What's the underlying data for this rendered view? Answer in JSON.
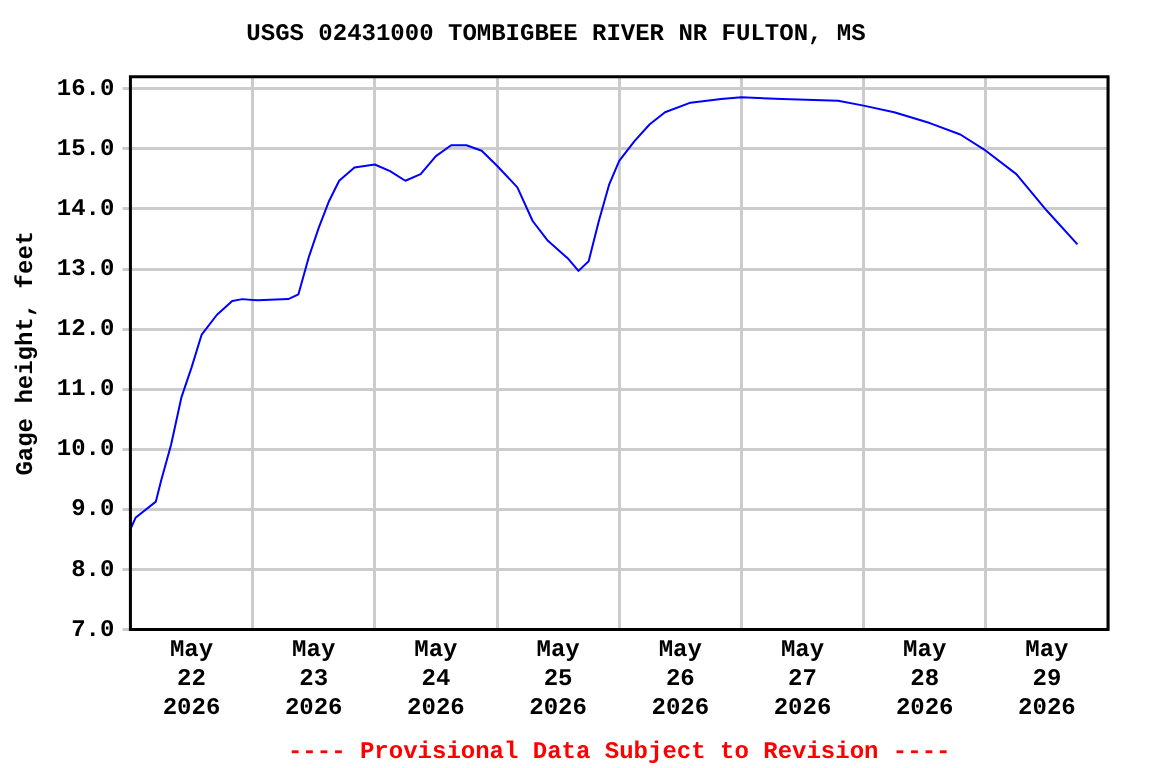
{
  "chart_data": {
    "type": "line",
    "title": "USGS 02431000 TOMBIGBEE RIVER NR FULTON, MS",
    "ylabel": "Gage height, feet",
    "annotations": [
      "---- Provisional Data Subject to Revision ----"
    ],
    "x": [
      "2026-05-22T00:00",
      "2026-05-22T01:00",
      "2026-05-22T05:00",
      "2026-05-22T06:00",
      "2026-05-22T08:00",
      "2026-05-22T10:00",
      "2026-05-22T12:00",
      "2026-05-22T14:00",
      "2026-05-22T17:00",
      "2026-05-22T20:00",
      "2026-05-22T22:00",
      "2026-05-23T01:00",
      "2026-05-23T07:00",
      "2026-05-23T09:00",
      "2026-05-23T11:00",
      "2026-05-23T13:00",
      "2026-05-23T15:00",
      "2026-05-23T17:00",
      "2026-05-23T20:00",
      "2026-05-24T00:00",
      "2026-05-24T03:00",
      "2026-05-24T06:00",
      "2026-05-24T09:00",
      "2026-05-24T12:00",
      "2026-05-24T15:00",
      "2026-05-24T18:00",
      "2026-05-24T21:00",
      "2026-05-25T00:00",
      "2026-05-25T04:00",
      "2026-05-25T07:00",
      "2026-05-25T10:00",
      "2026-05-25T14:00",
      "2026-05-25T16:00",
      "2026-05-25T18:00",
      "2026-05-25T20:00",
      "2026-05-25T22:00",
      "2026-05-26T00:00",
      "2026-05-26T03:00",
      "2026-05-26T06:00",
      "2026-05-26T09:00",
      "2026-05-26T14:00",
      "2026-05-26T20:00",
      "2026-05-27T00:00",
      "2026-05-27T08:00",
      "2026-05-27T19:00",
      "2026-05-28T00:00",
      "2026-05-28T06:00",
      "2026-05-28T13:00",
      "2026-05-28T19:00",
      "2026-05-29T00:00",
      "2026-05-29T06:00",
      "2026-05-29T12:00",
      "2026-05-29T18:00"
    ],
    "series": [
      {
        "color": "#0000ff",
        "values": [
          8.67,
          8.86,
          9.13,
          9.47,
          10.08,
          10.86,
          11.36,
          11.91,
          12.24,
          12.47,
          12.5,
          12.48,
          12.5,
          12.58,
          13.19,
          13.69,
          14.13,
          14.47,
          14.69,
          14.74,
          14.63,
          14.47,
          14.58,
          14.88,
          15.06,
          15.06,
          14.97,
          14.72,
          14.36,
          13.8,
          13.47,
          13.17,
          12.97,
          13.13,
          13.8,
          14.4,
          14.8,
          15.13,
          15.41,
          15.61,
          15.77,
          15.83,
          15.86,
          15.83,
          15.8,
          15.72,
          15.61,
          15.43,
          15.24,
          14.97,
          14.58,
          13.97,
          13.41
        ]
      }
    ],
    "xlim": [
      "2026-05-22T00:00",
      "2026-05-30T00:00"
    ],
    "xticks": [
      {
        "value": "2026-05-22T00:00",
        "label": null
      },
      {
        "value": "2026-05-22T12:00",
        "label": "May 22 2026"
      },
      {
        "value": "2026-05-23T00:00",
        "label": null
      },
      {
        "value": "2026-05-23T12:00",
        "label": "May 23 2026"
      },
      {
        "value": "2026-05-24T00:00",
        "label": null
      },
      {
        "value": "2026-05-24T12:00",
        "label": "May 24 2026"
      },
      {
        "value": "2026-05-25T00:00",
        "label": null
      },
      {
        "value": "2026-05-25T12:00",
        "label": "May 25 2026"
      },
      {
        "value": "2026-05-26T00:00",
        "label": null
      },
      {
        "value": "2026-05-26T12:00",
        "label": "May 26 2026"
      },
      {
        "value": "2026-05-27T00:00",
        "label": null
      },
      {
        "value": "2026-05-27T12:00",
        "label": "May 27 2026"
      },
      {
        "value": "2026-05-28T00:00",
        "label": null
      },
      {
        "value": "2026-05-28T12:00",
        "label": "May 28 2026"
      },
      {
        "value": "2026-05-29T00:00",
        "label": null
      },
      {
        "value": "2026-05-29T12:00",
        "label": "May 29 2026"
      },
      {
        "value": "2026-05-30T00:00",
        "label": null
      }
    ],
    "ylim": [
      7,
      16.2
    ],
    "yticks": [
      {
        "value": 7,
        "label": "7.0"
      },
      {
        "value": 8,
        "label": "8.0"
      },
      {
        "value": 9,
        "label": "9.0"
      },
      {
        "value": 10,
        "label": "10.0"
      },
      {
        "value": 11,
        "label": "11.0"
      },
      {
        "value": 12,
        "label": "12.0"
      },
      {
        "value": 13,
        "label": "13.0"
      },
      {
        "value": 14,
        "label": "14.0"
      },
      {
        "value": 15,
        "label": "15.0"
      },
      {
        "value": 16,
        "label": "16.0"
      }
    ],
    "grid": true,
    "legend": false,
    "marker": "none",
    "line_style": "solid"
  }
}
